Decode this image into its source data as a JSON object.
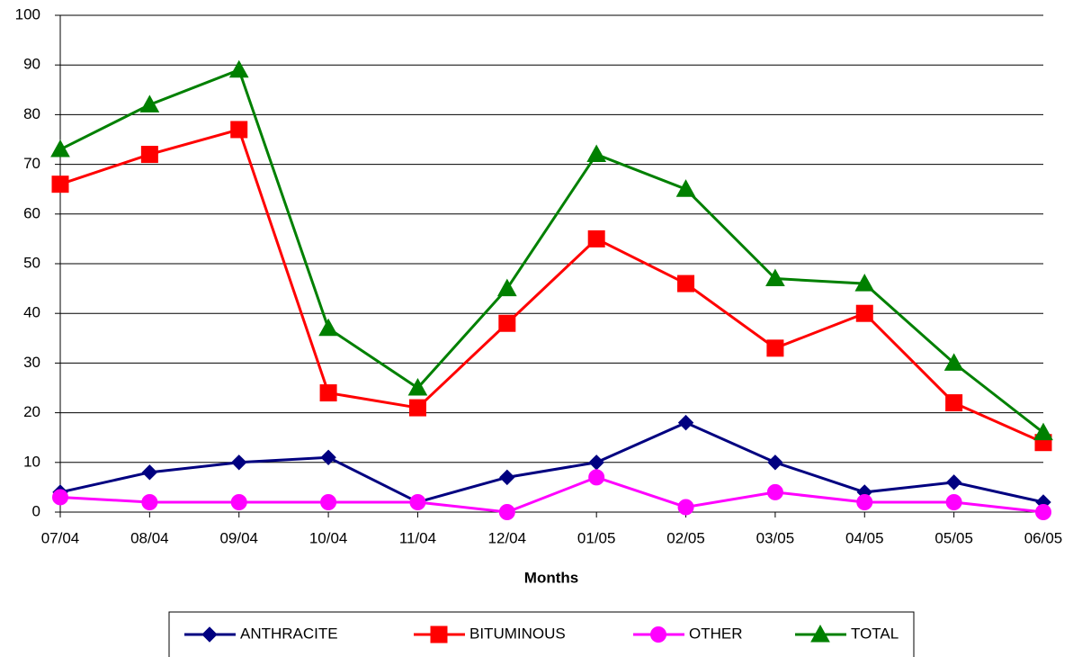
{
  "chart_data": {
    "type": "line",
    "x_label": "Months",
    "categories": [
      "07/04",
      "08/04",
      "09/04",
      "10/04",
      "11/04",
      "12/04",
      "01/05",
      "02/05",
      "03/05",
      "04/05",
      "05/05",
      "06/05"
    ],
    "series": [
      {
        "name": "ANTHRACITE",
        "color": "#000080",
        "marker": "diamond",
        "values": [
          4,
          8,
          10,
          11,
          2,
          7,
          10,
          18,
          10,
          4,
          6,
          2
        ]
      },
      {
        "name": "BITUMINOUS",
        "color": "#ff0000",
        "marker": "square",
        "values": [
          66,
          72,
          77,
          24,
          21,
          38,
          55,
          46,
          33,
          40,
          22,
          14
        ]
      },
      {
        "name": "OTHER",
        "color": "#ff00ff",
        "marker": "circle",
        "values": [
          3,
          2,
          2,
          2,
          2,
          0,
          7,
          1,
          4,
          2,
          2,
          0
        ]
      },
      {
        "name": "TOTAL",
        "color": "#008000",
        "marker": "triangle",
        "values": [
          73,
          82,
          89,
          37,
          25,
          45,
          72,
          65,
          47,
          46,
          30,
          16
        ]
      }
    ],
    "ylim": [
      0,
      100
    ],
    "yticks": [
      0,
      10,
      20,
      30,
      40,
      50,
      60,
      70,
      80,
      90,
      100
    ],
    "grid": true
  }
}
